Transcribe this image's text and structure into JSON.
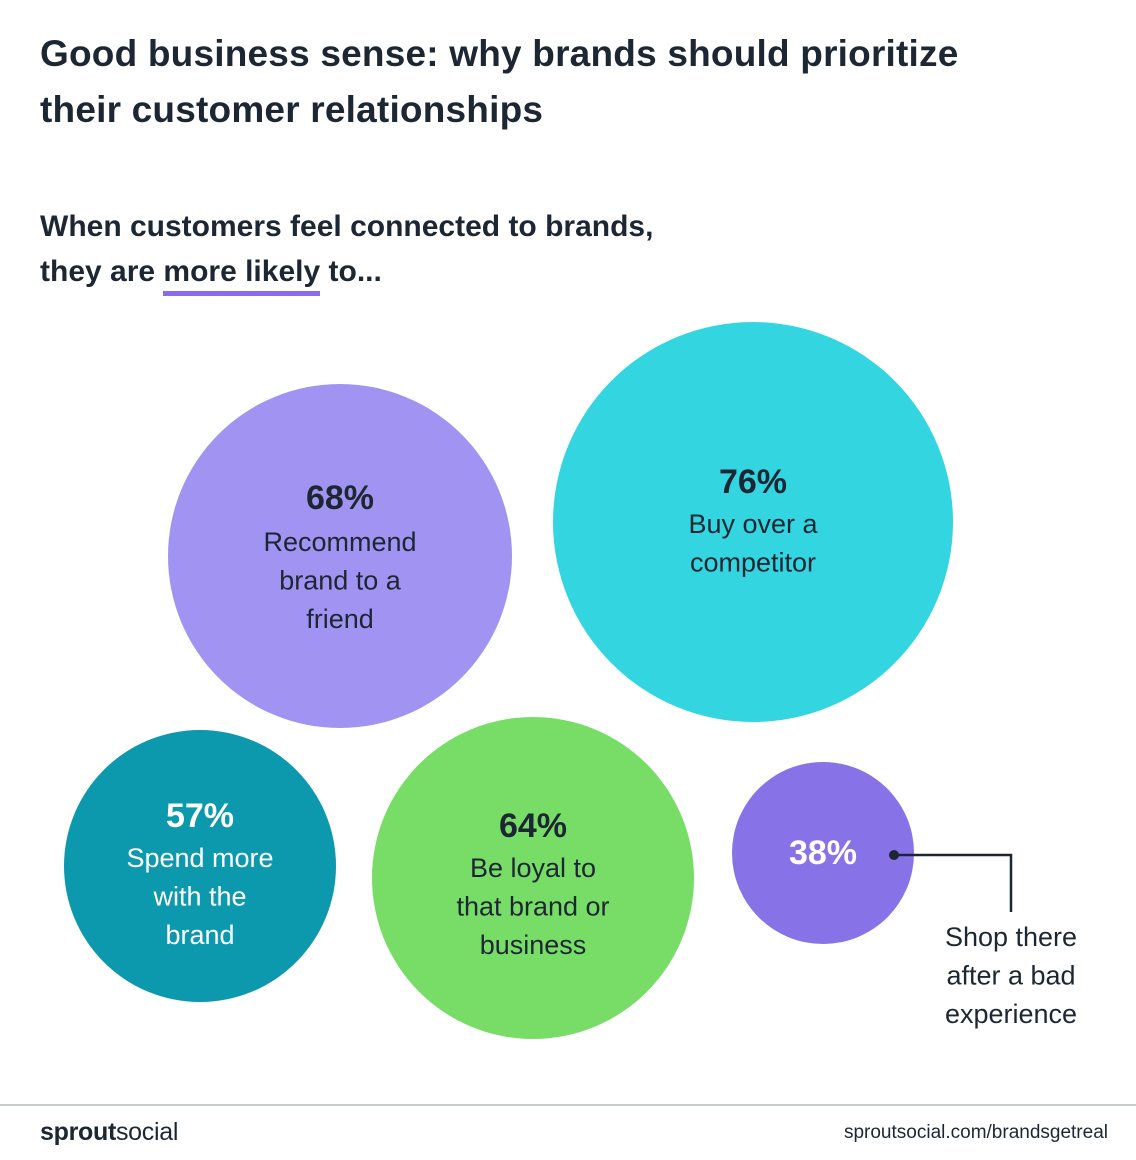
{
  "header": {
    "title_line1": "Good business sense: why brands should prioritize",
    "title_line2": "their customer relationships",
    "subtitle_line1": "When customers feel connected to brands,",
    "subtitle_pre": "they are ",
    "subtitle_emph": "more likely",
    "subtitle_post": " to..."
  },
  "colors": {
    "purple_light": "#a193f1",
    "cyan": "#33d5e0",
    "teal": "#0c98ad",
    "green": "#77dd67",
    "purple": "#8872e8",
    "text_dark": "#1c2733",
    "accent_underline": "#8a6be8"
  },
  "chart_data": {
    "type": "bubble",
    "title": "When customers feel connected to brands, they are more likely to...",
    "series": [
      {
        "name": "Recommend brand to a friend",
        "value": 68,
        "label": "68%",
        "lines": [
          "Recommend",
          "brand to a",
          "friend"
        ],
        "color": "#a193f1",
        "text": "#1c2733"
      },
      {
        "name": "Buy over a competitor",
        "value": 76,
        "label": "76%",
        "lines": [
          "Buy over a",
          "competitor"
        ],
        "color": "#33d5e0",
        "text": "#1c2733"
      },
      {
        "name": "Spend more with the brand",
        "value": 57,
        "label": "57%",
        "lines": [
          "Spend more",
          "with the",
          "brand"
        ],
        "color": "#0c98ad",
        "text": "#ffffff"
      },
      {
        "name": "Be loyal to that brand or business",
        "value": 64,
        "label": "64%",
        "lines": [
          "Be loyal to",
          "that brand or",
          "business"
        ],
        "color": "#77dd67",
        "text": "#1c2733"
      },
      {
        "name": "Shop there after a bad experience",
        "value": 38,
        "label": "38%",
        "lines": [
          "Shop there",
          "after a bad",
          "experience"
        ],
        "color": "#8872e8",
        "text": "#ffffff",
        "callout": true
      }
    ]
  },
  "footer": {
    "brand_bold": "sprout",
    "brand_regular": "social",
    "url": "sproutsocial.com/brandsgetreal"
  }
}
